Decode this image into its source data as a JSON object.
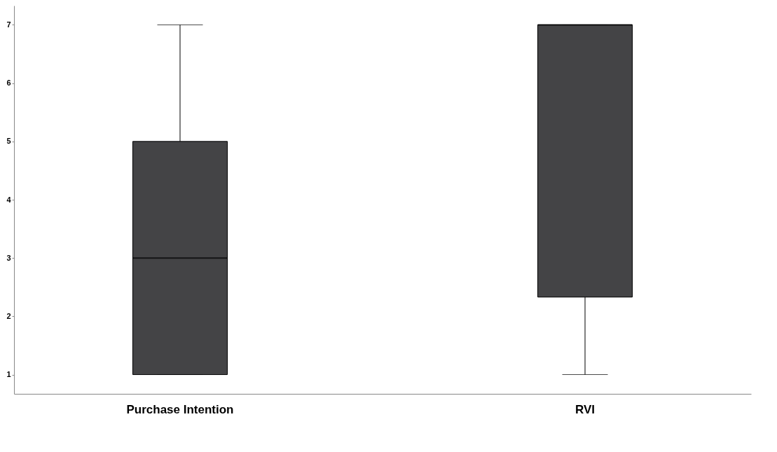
{
  "chart_data": {
    "type": "box",
    "categories": [
      "Purchase Intention",
      "RVI"
    ],
    "boxes": [
      {
        "low": 1,
        "q1": 1,
        "median": 3,
        "q3": 5,
        "high": 7
      },
      {
        "low": 1,
        "q1": 2.33,
        "median": 7,
        "q3": 7,
        "high": 7
      }
    ],
    "color": "#444446",
    "ylim": [
      0.67,
      7.33
    ],
    "yticks": [
      1,
      2,
      3,
      4,
      5,
      6,
      7
    ],
    "grid": false
  }
}
